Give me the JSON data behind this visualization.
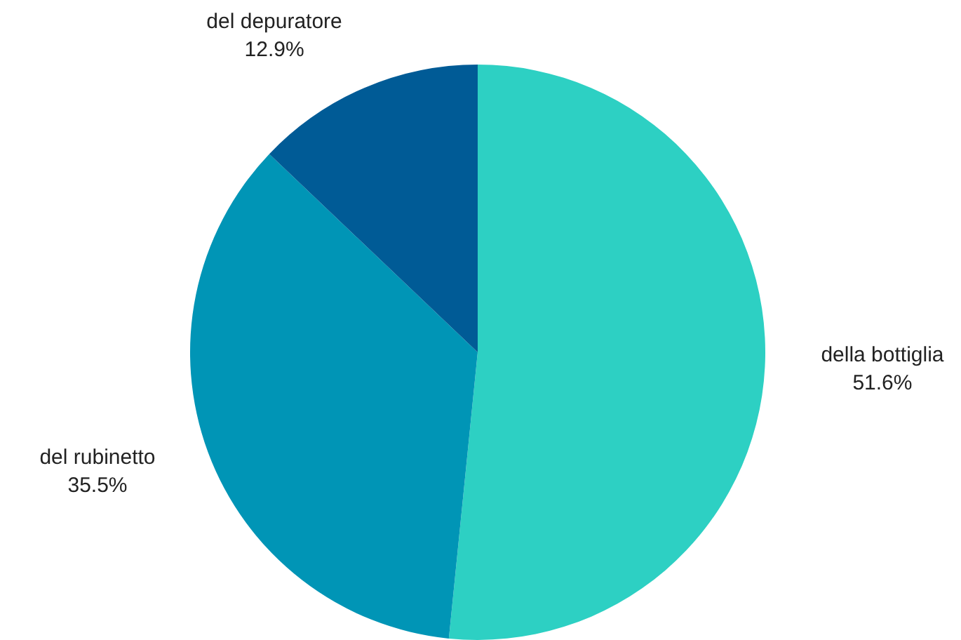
{
  "chart_data": {
    "type": "pie",
    "categories": [
      "della bottiglia",
      "del rubinetto",
      "del depuratore"
    ],
    "values": [
      51.6,
      35.5,
      12.9
    ],
    "colors": [
      "#2dd0c3",
      "#0095b6",
      "#005b96"
    ],
    "value_labels": [
      "51.6%",
      "35.5%",
      "12.9%"
    ]
  }
}
